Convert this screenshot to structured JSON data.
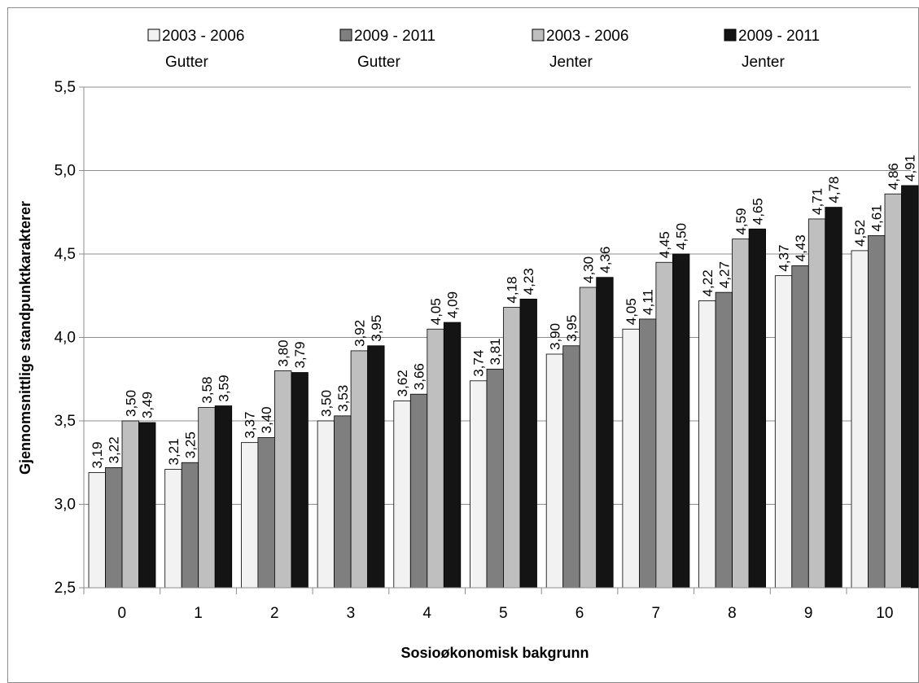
{
  "chart_data": {
    "type": "bar",
    "title": "",
    "xlabel": "Sosioøkonomisk bakgrunn",
    "ylabel": "Gjennomsnittlige standpunktkarakterer",
    "ylim": [
      2.5,
      5.5
    ],
    "yticks": [
      "2,5",
      "3,0",
      "3,5",
      "4,0",
      "4,5",
      "5,0",
      "5,5"
    ],
    "grid": true,
    "legend_position": "top",
    "categories": [
      "0",
      "1",
      "2",
      "3",
      "4",
      "5",
      "6",
      "7",
      "8",
      "9",
      "10"
    ],
    "series": [
      {
        "name": "2003 - 2006 Gutter",
        "legend_line1": "2003 - 2006",
        "legend_line2": "Gutter",
        "color": "#f2f2f2",
        "values": [
          3.19,
          3.21,
          3.37,
          3.5,
          3.62,
          3.74,
          3.9,
          4.05,
          4.22,
          4.37,
          4.52
        ],
        "labels": [
          "3,19",
          "3,21",
          "3,37",
          "3,50",
          "3,62",
          "3,74",
          "3,90",
          "4,05",
          "4,22",
          "4,37",
          "4,52"
        ]
      },
      {
        "name": "2009 - 2011 Gutter",
        "legend_line1": "2009 - 2011",
        "legend_line2": "Gutter",
        "color": "#7f7f7f",
        "values": [
          3.22,
          3.25,
          3.4,
          3.53,
          3.66,
          3.81,
          3.95,
          4.11,
          4.27,
          4.43,
          4.61
        ],
        "labels": [
          "3,22",
          "3,25",
          "3,40",
          "3,53",
          "3,66",
          "3,81",
          "3,95",
          "4,11",
          "4,27",
          "4,43",
          "4,61"
        ]
      },
      {
        "name": "2003 - 2006 Jenter",
        "legend_line1": "2003 - 2006",
        "legend_line2": "Jenter",
        "color": "#bfbfbf",
        "values": [
          3.5,
          3.58,
          3.8,
          3.92,
          4.05,
          4.18,
          4.3,
          4.45,
          4.59,
          4.71,
          4.86
        ],
        "labels": [
          "3,50",
          "3,58",
          "3,80",
          "3,92",
          "4,05",
          "4,18",
          "4,30",
          "4,45",
          "4,59",
          "4,71",
          "4,86"
        ]
      },
      {
        "name": "2009 - 2011 Jenter",
        "legend_line1": "2009 - 2011",
        "legend_line2": "Jenter",
        "color": "#141414",
        "values": [
          3.49,
          3.59,
          3.79,
          3.95,
          4.09,
          4.23,
          4.36,
          4.5,
          4.65,
          4.78,
          4.91
        ],
        "labels": [
          "3,49",
          "3,59",
          "3,79",
          "3,95",
          "4,09",
          "4,23",
          "4,36",
          "4,50",
          "4,65",
          "4,78",
          "4,91"
        ]
      }
    ]
  }
}
